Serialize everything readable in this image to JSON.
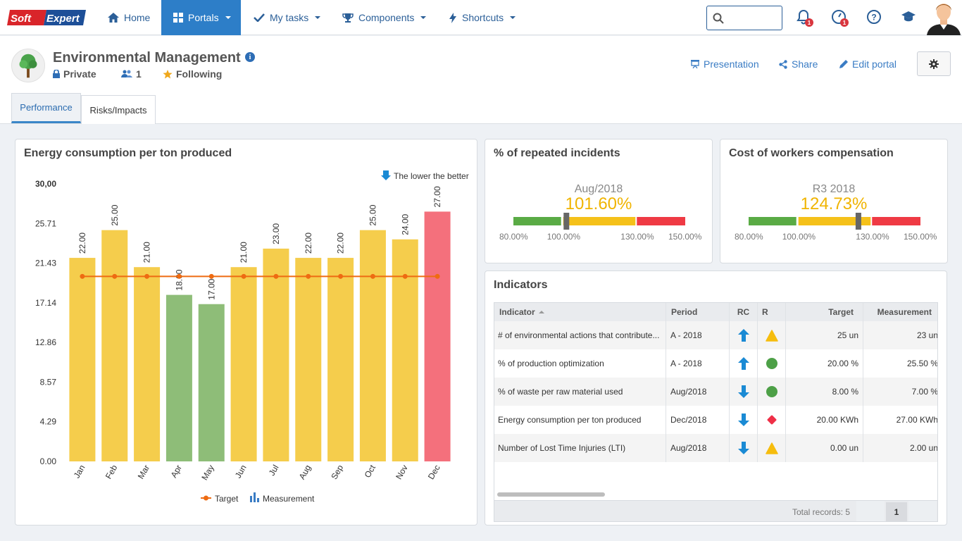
{
  "nav": {
    "items": [
      {
        "label": "Home",
        "icon": "home-icon"
      },
      {
        "label": "Portals",
        "icon": "grid-icon",
        "active": true
      },
      {
        "label": "My tasks",
        "icon": "check-icon"
      },
      {
        "label": "Components",
        "icon": "trophy-icon"
      },
      {
        "label": "Shortcuts",
        "icon": "bolt-icon"
      }
    ],
    "notifications_badge": "1",
    "alerts_badge": "1"
  },
  "header": {
    "title": "Environmental Management",
    "privacy": "Private",
    "members": "1",
    "following": "Following",
    "actions": {
      "presentation": "Presentation",
      "share": "Share",
      "edit": "Edit portal"
    }
  },
  "tabs": [
    "Performance",
    "Risks/Impacts"
  ],
  "energy": {
    "title": "Energy consumption per ton produced",
    "lower_better": "The lower the better",
    "legend_target": "Target",
    "legend_measurement": "Measurement"
  },
  "chart_data": {
    "type": "bar",
    "title": "Energy consumption per ton produced",
    "categories": [
      "Jan",
      "Feb",
      "Mar",
      "Apr",
      "May",
      "Jun",
      "Jul",
      "Aug",
      "Sep",
      "Oct",
      "Nov",
      "Dec"
    ],
    "series": [
      {
        "name": "Measurement",
        "values": [
          22.0,
          25.0,
          21.0,
          18.0,
          17.0,
          21.0,
          23.0,
          22.0,
          22.0,
          25.0,
          24.0,
          27.0
        ]
      },
      {
        "name": "Target",
        "values": [
          20,
          20,
          20,
          20,
          20,
          20,
          20,
          20,
          20,
          20,
          20,
          20
        ]
      }
    ],
    "value_labels": [
      "22.00",
      "25.00",
      "21.00",
      "18.00",
      "17.00",
      "21.00",
      "23.00",
      "22.00",
      "22.00",
      "25.00",
      "24.00",
      "27.00"
    ],
    "bar_colors": [
      "#f5cd4c",
      "#f5cd4c",
      "#f5cd4c",
      "#8ebd78",
      "#8ebd78",
      "#f5cd4c",
      "#f5cd4c",
      "#f5cd4c",
      "#f5cd4c",
      "#f5cd4c",
      "#f5cd4c",
      "#f4707c"
    ],
    "ylim": [
      0,
      30
    ],
    "yticks": [
      0,
      4.29,
      8.57,
      12.86,
      17.14,
      21.43,
      25.71,
      30
    ],
    "ytick_labels": [
      "0.00",
      "4.29",
      "8.57",
      "12.86",
      "17.14",
      "21.43",
      "25.71",
      "30,00"
    ],
    "target_color": "#ee6b12",
    "legend": "bottom-center",
    "grid": false
  },
  "gauges": [
    {
      "title": "% of repeated incidents",
      "period": "Aug/2018",
      "value": "101.60%",
      "value_num": 101.6,
      "min": 80,
      "max": 150,
      "bands": [
        100,
        130
      ],
      "ticks": [
        "80.00%",
        "100.00%",
        "130.00%",
        "150.00%"
      ]
    },
    {
      "title": "Cost of workers compensation",
      "period": "R3 2018",
      "value": "124.73%",
      "value_num": 124.73,
      "min": 80,
      "max": 150,
      "bands": [
        100,
        130
      ],
      "ticks": [
        "80.00%",
        "100.00%",
        "130.00%",
        "150.00%"
      ]
    }
  ],
  "indicators": {
    "title": "Indicators",
    "columns": [
      "Indicator",
      "Period",
      "RC",
      "R",
      "Target",
      "Measurement"
    ],
    "rows": [
      {
        "indicator": "# of environmental actions that contribute...",
        "period": "A - 2018",
        "rc": "up",
        "r": "yellow-triangle",
        "target": "25 un",
        "measurement": "23 un"
      },
      {
        "indicator": "% of production optimization",
        "period": "A - 2018",
        "rc": "up",
        "r": "green-circle",
        "target": "20.00 %",
        "measurement": "25.50 %"
      },
      {
        "indicator": "% of waste per raw material used",
        "period": "Aug/2018",
        "rc": "down",
        "r": "green-circle",
        "target": "8.00 %",
        "measurement": "7.00 %"
      },
      {
        "indicator": "Energy consumption per ton produced",
        "period": "Dec/2018",
        "rc": "down",
        "r": "red-diamond",
        "target": "20.00 KWh",
        "measurement": "27.00 KWh"
      },
      {
        "indicator": "Number of Lost Time Injuries (LTI)",
        "period": "Aug/2018",
        "rc": "down",
        "r": "yellow-triangle",
        "target": "0.00 un",
        "measurement": "2.00 un"
      }
    ],
    "total_records": "Total records: 5",
    "page": "1"
  },
  "colors": {
    "accent": "#2d7ec8",
    "link": "#3a7cc4",
    "green": "#5aab45",
    "yellow": "#f5c11a",
    "red": "#ef3a44",
    "arrow": "#1a8ad4"
  }
}
